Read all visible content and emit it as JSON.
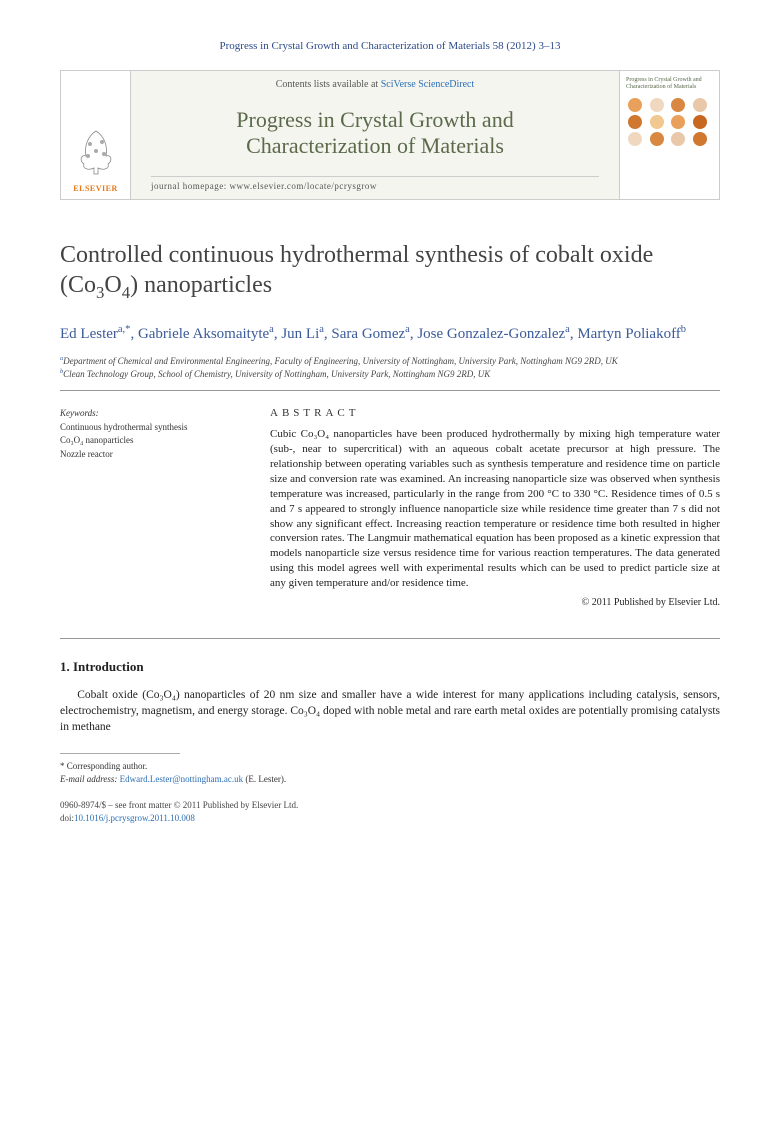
{
  "citation": "Progress in Crystal Growth and Characterization of Materials 58 (2012) 3–13",
  "header": {
    "publisher": "ELSEVIER",
    "contents_prefix": "Contents lists available at ",
    "contents_link": "SciVerse ScienceDirect",
    "journal_name_l1": "Progress in Crystal Growth and",
    "journal_name_l2": "Characterization of Materials",
    "homepage": "journal homepage: www.elsevier.com/locate/pcrysgrow",
    "cover_title": "Progress in Crystal Growth and Characterization of Materials",
    "cover_dot_colors": [
      "#e8a05a",
      "#f0d8c0",
      "#d88840",
      "#e8c8a8",
      "#d07830",
      "#f0c890",
      "#e8a05a",
      "#c86820",
      "#f0d8c0",
      "#d88840",
      "#e8c8a8",
      "#d07830"
    ]
  },
  "title_html": "Controlled continuous hydrothermal synthesis of cobalt oxide (Co<span class='sub34'>3</span>O<span class='sub34'>4</span>) nanoparticles",
  "authors_html": "Ed Lester<span class='sup'>a,*</span>, Gabriele Aksomaityte<span class='sup'>a</span>, Jun Li<span class='sup'>a</span>, Sara Gomez<span class='sup'>a</span>, Jose Gonzalez-Gonzalez<span class='sup'>a</span>, Martyn Poliakoff<span class='sup'>b</span>",
  "affiliations": {
    "a": "Department of Chemical and Environmental Engineering, Faculty of Engineering, University of Nottingham, University Park, Nottingham NG9 2RD, UK",
    "b": "Clean Technology Group, School of Chemistry, University of Nottingham, University Park, Nottingham NG9 2RD, UK"
  },
  "keywords": {
    "head": "Keywords:",
    "items": [
      "Continuous hydrothermal synthesis",
      "Co₃O₄ nanoparticles",
      "Nozzle reactor"
    ]
  },
  "abstract": {
    "head": "ABSTRACT",
    "text": "Cubic Co₃O₄ nanoparticles have been produced hydrothermally by mixing high temperature water (sub-, near to supercritical) with an aqueous cobalt acetate precursor at high pressure. The relationship between operating variables such as synthesis temperature and residence time on particle size and conversion rate was examined. An increasing nanoparticle size was observed when synthesis temperature was increased, particularly in the range from 200 °C to 330 °C. Residence times of 0.5 s and 7 s appeared to strongly influence nanoparticle size while residence time greater than 7 s did not show any significant effect. Increasing reaction temperature or residence time both resulted in higher conversion rates. The Langmuir mathematical equation has been proposed as a kinetic expression that models nanoparticle size versus residence time for various reaction temperatures. The data generated using this model agrees well with experimental results which can be used to predict particle size at any given temperature and/or residence time.",
    "copyright": "© 2011 Published by Elsevier Ltd."
  },
  "intro": {
    "head": "1. Introduction",
    "p1": "Cobalt oxide (Co₃O₄) nanoparticles of 20 nm size and smaller have a wide interest for many applications including catalysis, sensors, electrochemistry, magnetism, and energy storage. Co₃O₄ doped with noble metal and rare earth metal oxides are potentially promising catalysts in methane"
  },
  "footnote": {
    "corr": "* Corresponding author.",
    "email_label": "E-mail address:",
    "email": "Edward.Lester@nottingham.ac.uk",
    "email_who": "(E. Lester)."
  },
  "footer": {
    "issn": "0960-8974/$ – see front matter © 2011 Published by Elsevier Ltd.",
    "doi_label": "doi:",
    "doi": "10.1016/j.pcrysgrow.2011.10.008"
  },
  "colors": {
    "link": "#2a6fb5",
    "journal_green": "#5a6a4a",
    "author_blue": "#3a5a9a",
    "elsevier_orange": "#e67817"
  }
}
